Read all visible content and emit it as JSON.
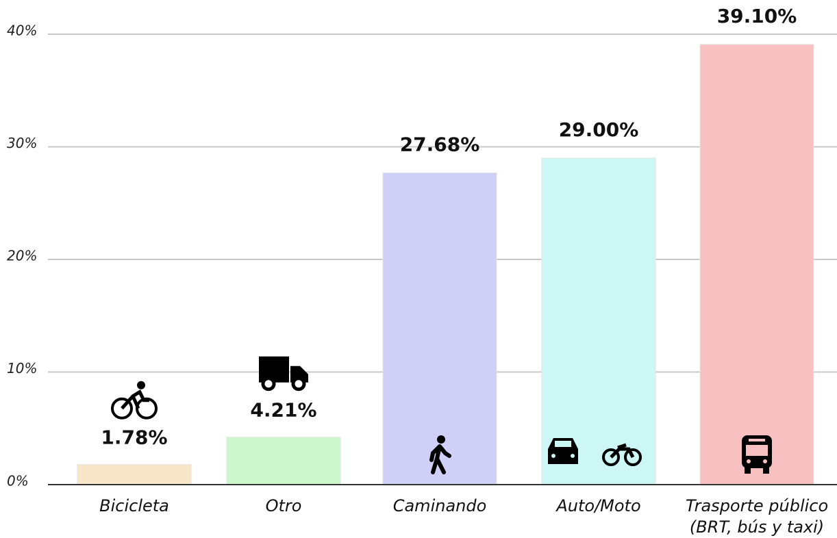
{
  "chart_data": {
    "type": "bar",
    "categories": [
      "Bicicleta",
      "Otro",
      "Caminando",
      "Auto/Moto",
      "Trasporte público\n(BRT, bús y taxi)"
    ],
    "values": [
      1.78,
      4.21,
      27.68,
      29.0,
      39.1
    ],
    "value_labels": [
      "1.78%",
      "4.21%",
      "27.68%",
      "29.00%",
      "39.10%"
    ],
    "colors": [
      "#f8e6c8",
      "#cdf7cd",
      "#cfcff7",
      "#cdf7f5",
      "#f9c0c2"
    ],
    "ylim": [
      0,
      40
    ],
    "yticks": [
      {
        "value": 0,
        "label": "0%"
      },
      {
        "value": 10,
        "label": "10%"
      },
      {
        "value": 20,
        "label": "20%"
      },
      {
        "value": 30,
        "label": "30%"
      },
      {
        "value": 40,
        "label": "40%"
      }
    ],
    "grid": true
  }
}
